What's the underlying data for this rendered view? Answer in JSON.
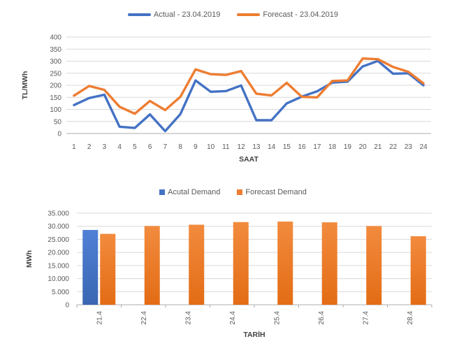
{
  "colors": {
    "background": "#ffffff",
    "actual_blue": "#4472C4",
    "forecast_orange": "#ED7D31",
    "gridline": "#D9D9D9",
    "axis_line": "#ADADAD",
    "tick_text": "#595959",
    "axis_title_text": "#404040",
    "legend_text": "#595959"
  },
  "chart_data": [
    {
      "type": "line",
      "title": "",
      "xlabel": "SAAT",
      "ylabel": "TL/MWh",
      "x": [
        1,
        2,
        3,
        4,
        5,
        6,
        7,
        8,
        9,
        10,
        11,
        12,
        13,
        14,
        15,
        16,
        17,
        18,
        19,
        20,
        21,
        22,
        23,
        24
      ],
      "ylim": [
        0,
        400
      ],
      "ytick_step": 50,
      "ytick_labels": [
        "0",
        "50",
        "100",
        "150",
        "200",
        "250",
        "300",
        "350",
        "400"
      ],
      "grid": true,
      "legend_position": "top",
      "series": [
        {
          "name": "Actual - 23.04.2019",
          "color": "#4472C4",
          "values": [
            118,
            147,
            161,
            28,
            23,
            79,
            10,
            80,
            220,
            173,
            176,
            199,
            55,
            55,
            125,
            153,
            175,
            211,
            215,
            278,
            301,
            248,
            250,
            200
          ]
        },
        {
          "name": "Forecast - 23.04.2019",
          "color": "#ED7D31",
          "values": [
            157,
            197,
            181,
            111,
            82,
            135,
            97,
            152,
            266,
            246,
            243,
            259,
            165,
            158,
            210,
            152,
            150,
            218,
            220,
            311,
            308,
            276,
            256,
            208
          ]
        }
      ]
    },
    {
      "type": "bar",
      "title": "",
      "xlabel": "TARİH",
      "ylabel": "MWh",
      "categories": [
        "21.4",
        "22.4",
        "23.4",
        "24.4",
        "25.4",
        "26.4",
        "27.4",
        "28.4"
      ],
      "ylim": [
        0,
        35000
      ],
      "ytick_step": 5000,
      "ytick_labels": [
        "0",
        "5.000",
        "10.000",
        "15.000",
        "20.000",
        "25.000",
        "30.000",
        "35.000"
      ],
      "grid": true,
      "legend_position": "top",
      "series": [
        {
          "name": "Acutal Demand",
          "color": "#4472C4",
          "gradient": [
            "#5080D6",
            "#3A66B2"
          ],
          "values": [
            28600,
            null,
            null,
            null,
            null,
            null,
            null,
            null
          ]
        },
        {
          "name": "Forecast Demand",
          "color": "#ED7D31",
          "gradient": [
            "#F28B3E",
            "#E36C15"
          ],
          "values": [
            27100,
            30100,
            30600,
            31600,
            31800,
            31500,
            30100,
            26200
          ]
        }
      ]
    }
  ]
}
